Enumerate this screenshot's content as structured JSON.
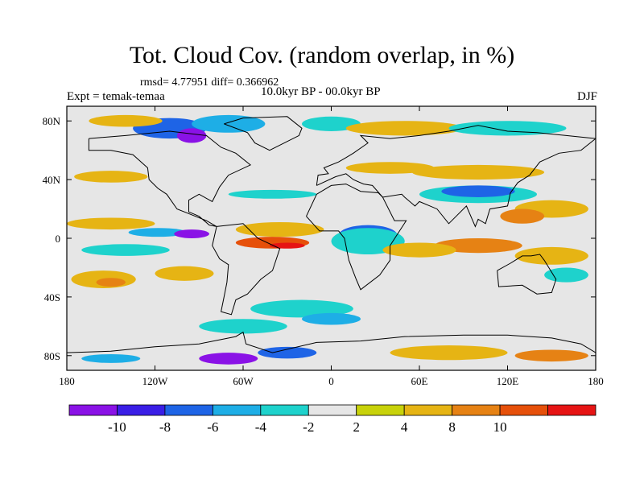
{
  "title": "Tot. Cloud Cov. (random overlap, in %)",
  "stats": "rmsd= 4.77951 diff= 0.366962",
  "experiment": "Expt = temak-temaa",
  "period": "10.0kyr BP - 00.0kyr BP",
  "season": "DJF",
  "map": {
    "projection": "cylindrical equidistant",
    "lon_range": [
      -180,
      180
    ],
    "lat_range": [
      -90,
      90
    ],
    "lon_ticks": [
      {
        "value": -180,
        "label": "180"
      },
      {
        "value": -120,
        "label": "120W"
      },
      {
        "value": -60,
        "label": "60W"
      },
      {
        "value": 0,
        "label": "0"
      },
      {
        "value": 60,
        "label": "60E"
      },
      {
        "value": 120,
        "label": "120E"
      },
      {
        "value": 180,
        "label": "180"
      }
    ],
    "lat_ticks": [
      {
        "value": 80,
        "label": "80N"
      },
      {
        "value": 40,
        "label": "40N"
      },
      {
        "value": 0,
        "label": "0"
      },
      {
        "value": -40,
        "label": "40S"
      },
      {
        "value": -80,
        "label": "80S"
      }
    ],
    "fill_background": "#e6e6e6"
  },
  "colorbar": {
    "colors": [
      "#8a12e6",
      "#3a1ee6",
      "#1e64e6",
      "#1eaee6",
      "#1ed2cc",
      "#e6e6e6",
      "#c8d20a",
      "#e6b414",
      "#e68214",
      "#e6500a",
      "#e61414"
    ],
    "labels": [
      "-10",
      "-8",
      "-6",
      "-4",
      "-2",
      "2",
      "4",
      "8",
      "10"
    ]
  },
  "regions": [
    {
      "color": "#e6b414",
      "lon": -155,
      "lat": -28,
      "rx": 22,
      "ry": 6
    },
    {
      "color": "#e68214",
      "lon": -150,
      "lat": -30,
      "rx": 10,
      "ry": 3
    },
    {
      "color": "#e6b414",
      "lon": -100,
      "lat": -24,
      "rx": 20,
      "ry": 5
    },
    {
      "color": "#1ed2cc",
      "lon": -140,
      "lat": -8,
      "rx": 30,
      "ry": 4
    },
    {
      "color": "#1eaee6",
      "lon": -118,
      "lat": 4,
      "rx": 20,
      "ry": 3
    },
    {
      "color": "#8a12e6",
      "lon": -95,
      "lat": 3,
      "rx": 12,
      "ry": 3
    },
    {
      "color": "#e6b414",
      "lon": -150,
      "lat": 10,
      "rx": 30,
      "ry": 4
    },
    {
      "color": "#e6500a",
      "lon": -40,
      "lat": -3,
      "rx": 25,
      "ry": 4
    },
    {
      "color": "#e61414",
      "lon": -30,
      "lat": -5,
      "rx": 12,
      "ry": 2
    },
    {
      "color": "#e6b414",
      "lon": -35,
      "lat": 6,
      "rx": 30,
      "ry": 5
    },
    {
      "color": "#8a12e6",
      "lon": 25,
      "lat": 3,
      "rx": 14,
      "ry": 5
    },
    {
      "color": "#1e64e6",
      "lon": 25,
      "lat": 2,
      "rx": 20,
      "ry": 7
    },
    {
      "color": "#1ed2cc",
      "lon": 25,
      "lat": -2,
      "rx": 25,
      "ry": 9
    },
    {
      "color": "#1ed2cc",
      "lon": -20,
      "lat": -48,
      "rx": 35,
      "ry": 6
    },
    {
      "color": "#1eaee6",
      "lon": 0,
      "lat": -55,
      "rx": 20,
      "ry": 4
    },
    {
      "color": "#1ed2cc",
      "lon": -60,
      "lat": -60,
      "rx": 30,
      "ry": 5
    },
    {
      "color": "#1ed2cc",
      "lon": 100,
      "lat": 30,
      "rx": 40,
      "ry": 6
    },
    {
      "color": "#1e64e6",
      "lon": 100,
      "lat": 32,
      "rx": 25,
      "ry": 4
    },
    {
      "color": "#e6b414",
      "lon": 100,
      "lat": 45,
      "rx": 45,
      "ry": 5
    },
    {
      "color": "#e6b414",
      "lon": 150,
      "lat": 20,
      "rx": 25,
      "ry": 6
    },
    {
      "color": "#e68214",
      "lon": 130,
      "lat": 15,
      "rx": 15,
      "ry": 5
    },
    {
      "color": "#e68214",
      "lon": 100,
      "lat": -5,
      "rx": 30,
      "ry": 5
    },
    {
      "color": "#e6b414",
      "lon": 150,
      "lat": -12,
      "rx": 25,
      "ry": 6
    },
    {
      "color": "#1ed2cc",
      "lon": 160,
      "lat": -25,
      "rx": 15,
      "ry": 5
    },
    {
      "color": "#e6b414",
      "lon": 60,
      "lat": -8,
      "rx": 25,
      "ry": 5
    },
    {
      "color": "#1e64e6",
      "lon": -110,
      "lat": 75,
      "rx": 25,
      "ry": 7
    },
    {
      "color": "#8a12e6",
      "lon": -95,
      "lat": 70,
      "rx": 10,
      "ry": 5
    },
    {
      "color": "#1eaee6",
      "lon": -70,
      "lat": 78,
      "rx": 25,
      "ry": 6
    },
    {
      "color": "#e6b414",
      "lon": -140,
      "lat": 80,
      "rx": 25,
      "ry": 4
    },
    {
      "color": "#1ed2cc",
      "lon": 0,
      "lat": 78,
      "rx": 20,
      "ry": 5
    },
    {
      "color": "#e6b414",
      "lon": 50,
      "lat": 75,
      "rx": 40,
      "ry": 5
    },
    {
      "color": "#1ed2cc",
      "lon": 120,
      "lat": 75,
      "rx": 40,
      "ry": 5
    },
    {
      "color": "#e6b414",
      "lon": -150,
      "lat": 42,
      "rx": 25,
      "ry": 4
    },
    {
      "color": "#1ed2cc",
      "lon": -40,
      "lat": 30,
      "rx": 30,
      "ry": 3
    },
    {
      "color": "#e6b414",
      "lon": 40,
      "lat": 48,
      "rx": 30,
      "ry": 4
    },
    {
      "color": "#8a12e6",
      "lon": -70,
      "lat": -82,
      "rx": 20,
      "ry": 4
    },
    {
      "color": "#1e64e6",
      "lon": -30,
      "lat": -78,
      "rx": 20,
      "ry": 4
    },
    {
      "color": "#e6b414",
      "lon": 80,
      "lat": -78,
      "rx": 40,
      "ry": 5
    },
    {
      "color": "#e68214",
      "lon": 150,
      "lat": -80,
      "rx": 25,
      "ry": 4
    },
    {
      "color": "#1eaee6",
      "lon": -150,
      "lat": -82,
      "rx": 20,
      "ry": 3
    }
  ],
  "coastlines": [
    {
      "name": "north-america",
      "points": [
        [
          -165,
          68
        ],
        [
          -140,
          70
        ],
        [
          -110,
          73
        ],
        [
          -85,
          70
        ],
        [
          -75,
          62
        ],
        [
          -65,
          58
        ],
        [
          -55,
          50
        ],
        [
          -70,
          43
        ],
        [
          -76,
          35
        ],
        [
          -81,
          25
        ],
        [
          -90,
          30
        ],
        [
          -97,
          26
        ],
        [
          -97,
          18
        ],
        [
          -90,
          15
        ],
        [
          -83,
          9
        ],
        [
          -78,
          8
        ],
        [
          -85,
          12
        ],
        [
          -95,
          16
        ],
        [
          -105,
          20
        ],
        [
          -112,
          30
        ],
        [
          -118,
          34
        ],
        [
          -124,
          40
        ],
        [
          -125,
          48
        ],
        [
          -135,
          57
        ],
        [
          -150,
          60
        ],
        [
          -165,
          60
        ],
        [
          -165,
          68
        ]
      ]
    },
    {
      "name": "south-america",
      "points": [
        [
          -78,
          8
        ],
        [
          -60,
          10
        ],
        [
          -50,
          0
        ],
        [
          -35,
          -7
        ],
        [
          -40,
          -22
        ],
        [
          -48,
          -28
        ],
        [
          -57,
          -38
        ],
        [
          -65,
          -42
        ],
        [
          -68,
          -52
        ],
        [
          -75,
          -50
        ],
        [
          -73,
          -40
        ],
        [
          -71,
          -30
        ],
        [
          -70,
          -18
        ],
        [
          -76,
          -14
        ],
        [
          -81,
          -5
        ],
        [
          -78,
          8
        ]
      ]
    },
    {
      "name": "africa",
      "points": [
        [
          -17,
          15
        ],
        [
          -10,
          30
        ],
        [
          0,
          36
        ],
        [
          10,
          37
        ],
        [
          20,
          32
        ],
        [
          32,
          31
        ],
        [
          35,
          28
        ],
        [
          43,
          12
        ],
        [
          51,
          12
        ],
        [
          40,
          -5
        ],
        [
          40,
          -15
        ],
        [
          33,
          -25
        ],
        [
          20,
          -35
        ],
        [
          17,
          -28
        ],
        [
          12,
          -15
        ],
        [
          9,
          0
        ],
        [
          5,
          5
        ],
        [
          -8,
          5
        ],
        [
          -17,
          15
        ]
      ]
    },
    {
      "name": "eurasia",
      "points": [
        [
          -10,
          36
        ],
        [
          -9,
          43
        ],
        [
          -2,
          44
        ],
        [
          -5,
          48
        ],
        [
          5,
          52
        ],
        [
          10,
          55
        ],
        [
          15,
          58
        ],
        [
          25,
          65
        ],
        [
          20,
          70
        ],
        [
          40,
          68
        ],
        [
          60,
          70
        ],
        [
          80,
          73
        ],
        [
          100,
          77
        ],
        [
          120,
          73
        ],
        [
          140,
          72
        ],
        [
          160,
          70
        ],
        [
          180,
          68
        ],
        [
          170,
          60
        ],
        [
          155,
          58
        ],
        [
          142,
          52
        ],
        [
          135,
          43
        ],
        [
          127,
          38
        ],
        [
          122,
          31
        ],
        [
          120,
          22
        ],
        [
          108,
          20
        ],
        [
          105,
          10
        ],
        [
          100,
          13
        ],
        [
          98,
          8
        ],
        [
          92,
          22
        ],
        [
          80,
          10
        ],
        [
          72,
          20
        ],
        [
          60,
          25
        ],
        [
          57,
          22
        ],
        [
          50,
          28
        ],
        [
          48,
          30
        ],
        [
          35,
          28
        ],
        [
          28,
          36
        ],
        [
          22,
          37
        ],
        [
          15,
          40
        ],
        [
          10,
          44
        ],
        [
          3,
          42
        ],
        [
          -10,
          36
        ]
      ]
    },
    {
      "name": "australia",
      "points": [
        [
          113,
          -22
        ],
        [
          114,
          -33
        ],
        [
          130,
          -32
        ],
        [
          140,
          -38
        ],
        [
          150,
          -37
        ],
        [
          153,
          -28
        ],
        [
          145,
          -15
        ],
        [
          142,
          -11
        ],
        [
          136,
          -12
        ],
        [
          130,
          -12
        ],
        [
          122,
          -17
        ],
        [
          113,
          -22
        ]
      ]
    },
    {
      "name": "greenland",
      "points": [
        [
          -73,
          78
        ],
        [
          -60,
          82
        ],
        [
          -30,
          83
        ],
        [
          -20,
          75
        ],
        [
          -22,
          70
        ],
        [
          -42,
          60
        ],
        [
          -52,
          65
        ],
        [
          -57,
          72
        ],
        [
          -73,
          78
        ]
      ]
    },
    {
      "name": "antarctica",
      "points": [
        [
          -180,
          -78
        ],
        [
          -150,
          -77
        ],
        [
          -120,
          -74
        ],
        [
          -90,
          -72
        ],
        [
          -65,
          -67
        ],
        [
          -60,
          -64
        ],
        [
          -58,
          -72
        ],
        [
          -40,
          -78
        ],
        [
          -10,
          -71
        ],
        [
          20,
          -70
        ],
        [
          50,
          -67
        ],
        [
          90,
          -66
        ],
        [
          120,
          -66
        ],
        [
          150,
          -68
        ],
        [
          170,
          -72
        ],
        [
          180,
          -78
        ]
      ]
    }
  ]
}
